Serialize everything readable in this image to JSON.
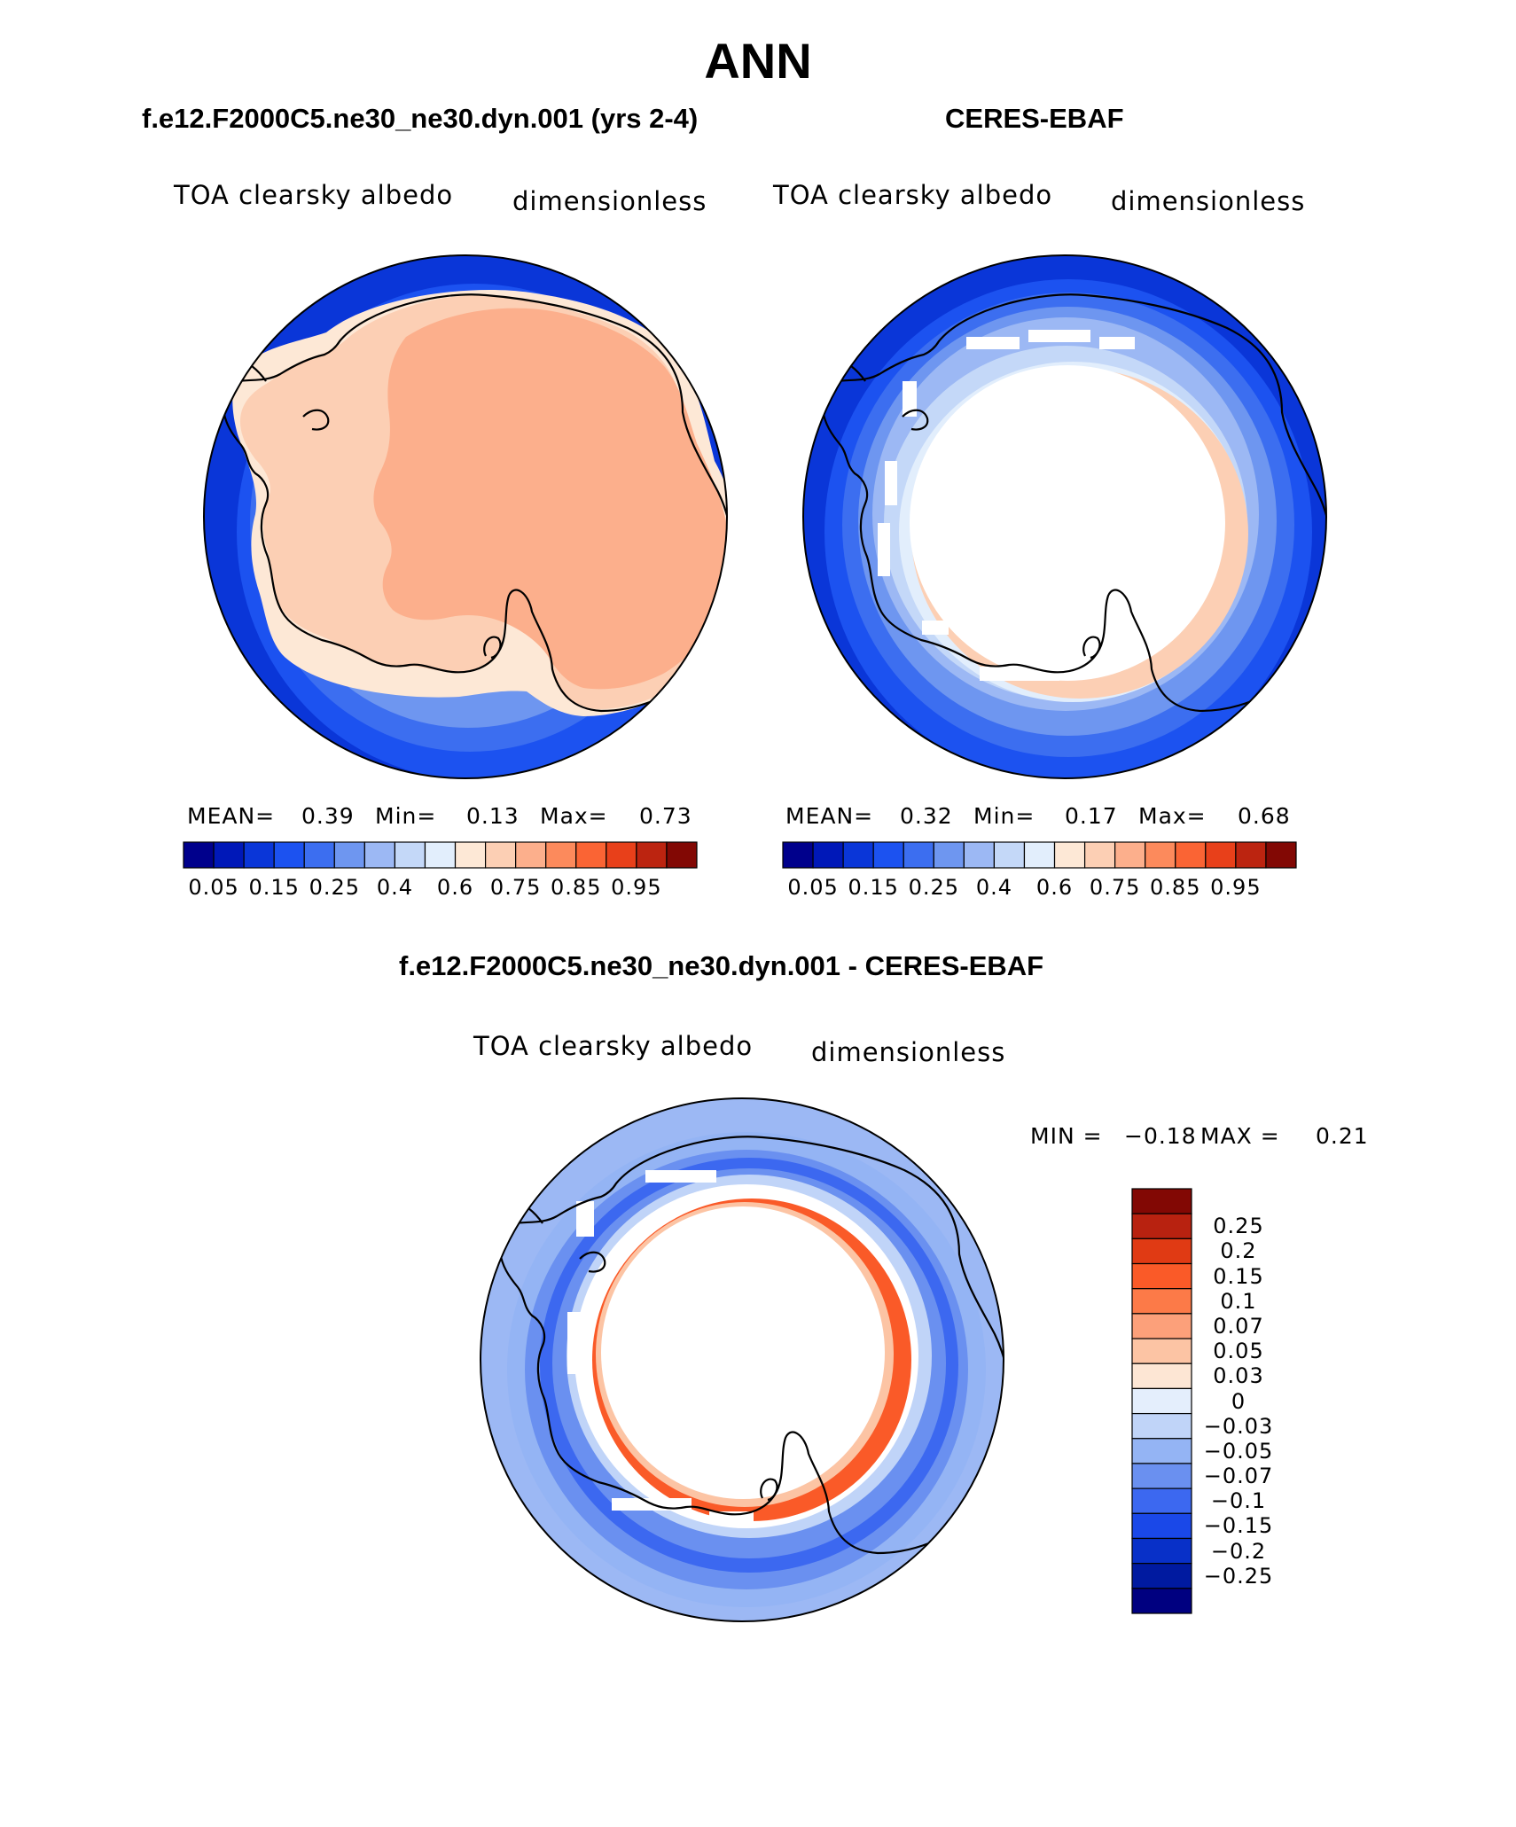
{
  "title": "ANN",
  "panels": {
    "model": {
      "title": "f.e12.F2000C5.ne30_ne30.dyn.001 (yrs 2-4)",
      "variable": "TOA clearsky albedo",
      "units": "dimensionless",
      "mean_label": "MEAN=",
      "mean": "0.39",
      "min_label": "Min=",
      "min": "0.13",
      "max_label": "Max=",
      "max": "0.73"
    },
    "obs": {
      "title": "CERES-EBAF",
      "variable": "TOA clearsky albedo",
      "units": "dimensionless",
      "mean_label": "MEAN=",
      "mean": "0.32",
      "min_label": "Min=",
      "min": "0.17",
      "max_label": "Max=",
      "max": "0.68"
    },
    "diff": {
      "title": "f.e12.F2000C5.ne30_ne30.dyn.001 - CERES-EBAF",
      "variable": "TOA clearsky albedo",
      "units": "dimensionless",
      "min_label": "MIN =",
      "min": "−0.18",
      "max_label": "MAX =",
      "max": "0.21"
    }
  },
  "colorbar_main": {
    "colors": [
      "#00008c",
      "#0018b8",
      "#0a36d8",
      "#1c52f0",
      "#3c6ef0",
      "#6e96f0",
      "#9cb8f4",
      "#c4d8f8",
      "#e2eefc",
      "#fde8d6",
      "#fccfb4",
      "#fcaf8c",
      "#fc8a5c",
      "#fa6434",
      "#e8401a",
      "#bc2410",
      "#820804"
    ],
    "tick_labels": [
      "0.05",
      "0.15",
      "0.25",
      "0.4",
      "0.6",
      "0.75",
      "0.85",
      "0.95"
    ]
  },
  "colorbar_diff": {
    "colors": [
      "#820804",
      "#b82210",
      "#e03a14",
      "#fa5a28",
      "#fc7a48",
      "#fca07a",
      "#fcc4a4",
      "#fde6d4",
      "#e4eefc",
      "#c0d4f8",
      "#94b4f4",
      "#6a90f0",
      "#3c68f0",
      "#1a48e8",
      "#0830c8",
      "#001aa0",
      "#000080"
    ],
    "tick_labels": [
      "0.25",
      "0.2",
      "0.15",
      "0.1",
      "0.07",
      "0.05",
      "0.03",
      "0",
      "−0.03",
      "−0.05",
      "−0.07",
      "−0.1",
      "−0.15",
      "−0.2",
      "−0.25"
    ]
  }
}
